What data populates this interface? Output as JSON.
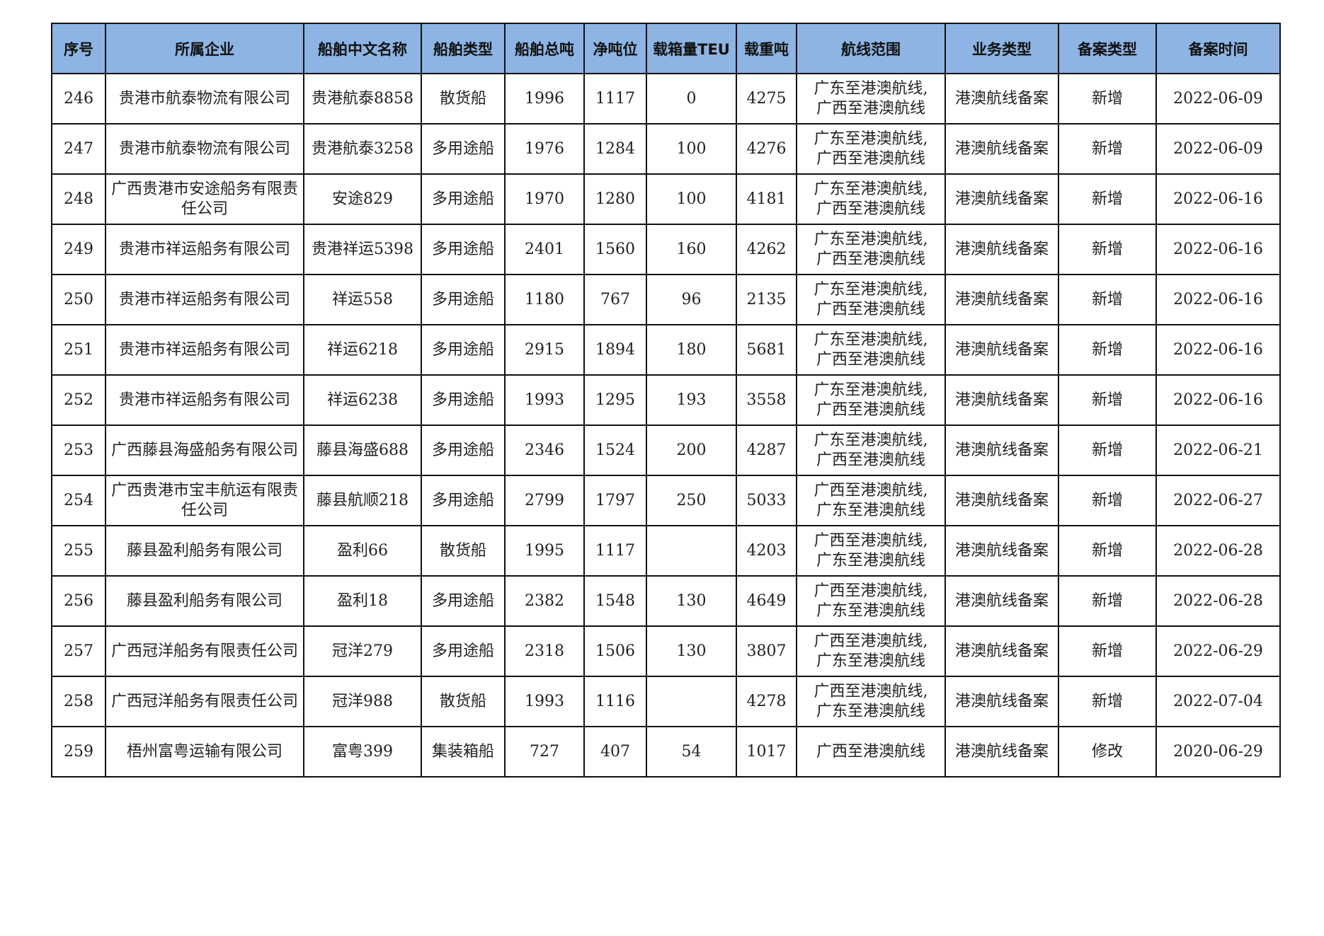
{
  "table": {
    "headers": [
      "序号",
      "所属企业",
      "船舶中文名称",
      "船舶类型",
      "船舶总吨",
      "净吨位",
      "载箱量TEU",
      "载重吨",
      "航线范围",
      "业务类型",
      "备案类型",
      "备案时间"
    ],
    "rows": [
      [
        "246",
        "贵港市航泰物流有限公司",
        "贵港航泰8858",
        "散货船",
        "1996",
        "1117",
        "0",
        "4275",
        "广东至港澳航线,\n广西至港澳航线",
        "港澳航线备案",
        "新增",
        "2022-06-09"
      ],
      [
        "247",
        "贵港市航泰物流有限公司",
        "贵港航泰3258",
        "多用途船",
        "1976",
        "1284",
        "100",
        "4276",
        "广东至港澳航线,\n广西至港澳航线",
        "港澳航线备案",
        "新增",
        "2022-06-09"
      ],
      [
        "248",
        "广西贵港市安途船务有限责任公司",
        "安途829",
        "多用途船",
        "1970",
        "1280",
        "100",
        "4181",
        "广东至港澳航线,\n广西至港澳航线",
        "港澳航线备案",
        "新增",
        "2022-06-16"
      ],
      [
        "249",
        "贵港市祥运船务有限公司",
        "贵港祥运5398",
        "多用途船",
        "2401",
        "1560",
        "160",
        "4262",
        "广东至港澳航线,\n广西至港澳航线",
        "港澳航线备案",
        "新增",
        "2022-06-16"
      ],
      [
        "250",
        "贵港市祥运船务有限公司",
        "祥运558",
        "多用途船",
        "1180",
        "767",
        "96",
        "2135",
        "广东至港澳航线,\n广西至港澳航线",
        "港澳航线备案",
        "新增",
        "2022-06-16"
      ],
      [
        "251",
        "贵港市祥运船务有限公司",
        "祥运6218",
        "多用途船",
        "2915",
        "1894",
        "180",
        "5681",
        "广东至港澳航线,\n广西至港澳航线",
        "港澳航线备案",
        "新增",
        "2022-06-16"
      ],
      [
        "252",
        "贵港市祥运船务有限公司",
        "祥运6238",
        "多用途船",
        "1993",
        "1295",
        "193",
        "3558",
        "广东至港澳航线,\n广西至港澳航线",
        "港澳航线备案",
        "新增",
        "2022-06-16"
      ],
      [
        "253",
        "广西藤县海盛船务有限公司",
        "藤县海盛688",
        "多用途船",
        "2346",
        "1524",
        "200",
        "4287",
        "广东至港澳航线,\n广西至港澳航线",
        "港澳航线备案",
        "新增",
        "2022-06-21"
      ],
      [
        "254",
        "广西贵港市宝丰航运有限责任公司",
        "藤县航顺218",
        "多用途船",
        "2799",
        "1797",
        "250",
        "5033",
        "广西至港澳航线,\n广东至港澳航线",
        "港澳航线备案",
        "新增",
        "2022-06-27"
      ],
      [
        "255",
        "藤县盈利船务有限公司",
        "盈利66",
        "散货船",
        "1995",
        "1117",
        "",
        "4203",
        "广西至港澳航线,\n广东至港澳航线",
        "港澳航线备案",
        "新增",
        "2022-06-28"
      ],
      [
        "256",
        "藤县盈利船务有限公司",
        "盈利18",
        "多用途船",
        "2382",
        "1548",
        "130",
        "4649",
        "广西至港澳航线,\n广东至港澳航线",
        "港澳航线备案",
        "新增",
        "2022-06-28"
      ],
      [
        "257",
        "广西冠洋船务有限责任公司",
        "冠洋279",
        "多用途船",
        "2318",
        "1506",
        "130",
        "3807",
        "广西至港澳航线,\n广东至港澳航线",
        "港澳航线备案",
        "新增",
        "2022-06-29"
      ],
      [
        "258",
        "广西冠洋船务有限责任公司",
        "冠洋988",
        "散货船",
        "1993",
        "1116",
        "",
        "4278",
        "广西至港澳航线,\n广东至港澳航线",
        "港澳航线备案",
        "新增",
        "2022-07-04"
      ],
      [
        "259",
        "梧州富粤运输有限公司",
        "富粤399",
        "集装箱船",
        "727",
        "407",
        "54",
        "1017",
        "广西至港澳航线",
        "港澳航线备案",
        "修改",
        "2020-06-29"
      ]
    ]
  },
  "colors": {
    "header_bg": "#8db4e2",
    "border": "#111111"
  }
}
